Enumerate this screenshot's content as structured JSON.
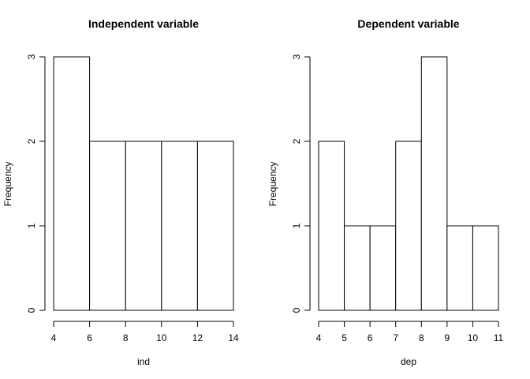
{
  "chart_data": [
    {
      "type": "bar",
      "title": "Independent variable",
      "xlabel": "ind",
      "ylabel": "Frequency",
      "bins": [
        {
          "from": 4,
          "to": 6,
          "count": 3
        },
        {
          "from": 6,
          "to": 8,
          "count": 2
        },
        {
          "from": 8,
          "to": 10,
          "count": 2
        },
        {
          "from": 10,
          "to": 12,
          "count": 2
        },
        {
          "from": 12,
          "to": 14,
          "count": 2
        }
      ],
      "xlim": [
        4,
        14
      ],
      "ylim": [
        0,
        3
      ],
      "xticks": [
        "4",
        "6",
        "8",
        "10",
        "12",
        "14"
      ],
      "yticks": [
        "0",
        "1",
        "2",
        "3"
      ],
      "grid": false
    },
    {
      "type": "bar",
      "title": "Dependent variable",
      "xlabel": "dep",
      "ylabel": "Frequency",
      "bins": [
        {
          "from": 4,
          "to": 5,
          "count": 2
        },
        {
          "from": 5,
          "to": 6,
          "count": 1
        },
        {
          "from": 6,
          "to": 7,
          "count": 1
        },
        {
          "from": 7,
          "to": 8,
          "count": 2
        },
        {
          "from": 8,
          "to": 9,
          "count": 3
        },
        {
          "from": 9,
          "to": 10,
          "count": 1
        },
        {
          "from": 10,
          "to": 11,
          "count": 1
        }
      ],
      "xlim": [
        4,
        11
      ],
      "ylim": [
        0,
        3
      ],
      "xticks": [
        "4",
        "5",
        "6",
        "7",
        "8",
        "9",
        "10",
        "11"
      ],
      "yticks": [
        "0",
        "1",
        "2",
        "3"
      ],
      "grid": false
    }
  ]
}
